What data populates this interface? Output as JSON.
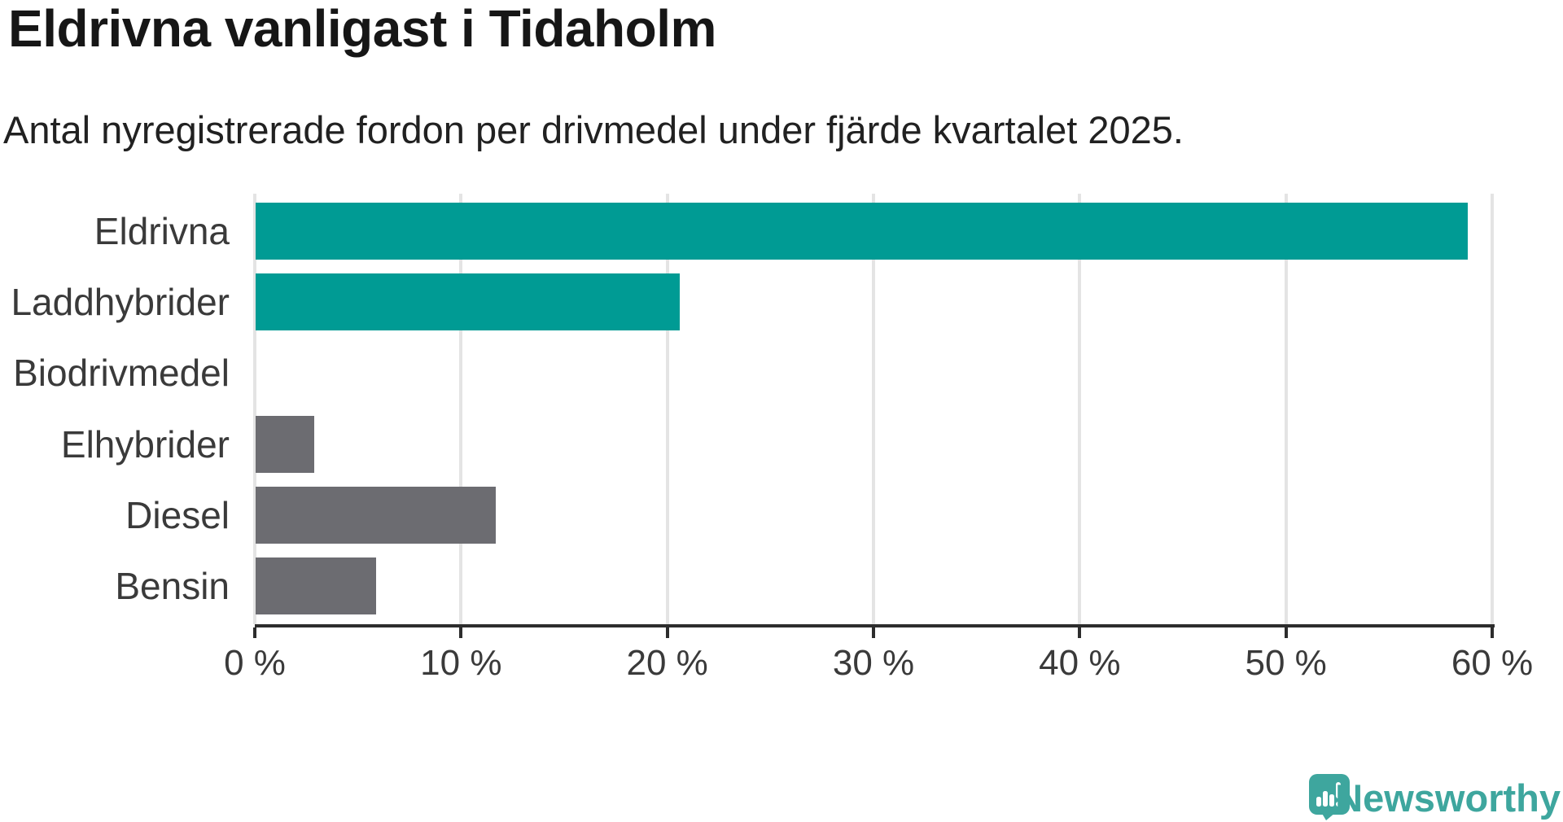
{
  "header": {
    "title": "Eldrivna vanligast i Tidaholm",
    "subtitle": "Antal nyregistrerade fordon per drivmedel under fjärde kvartalet 2025."
  },
  "chart_data": {
    "type": "bar",
    "orientation": "horizontal",
    "title": "Eldrivna vanligast i Tidaholm",
    "subtitle": "Antal nyregistrerade fordon per drivmedel under fjärde kvartalet 2025.",
    "categories": [
      "Eldrivna",
      "Laddhybrider",
      "Biodrivmedel",
      "Elhybrider",
      "Diesel",
      "Bensin"
    ],
    "values": [
      58.8,
      20.6,
      0,
      2.9,
      11.7,
      5.9
    ],
    "unit": "%",
    "bar_colors": [
      "#009b94",
      "#009b94",
      "#6c6c71",
      "#6c6c71",
      "#6c6c71",
      "#6c6c71"
    ],
    "highlight_color": "#009b94",
    "default_color": "#6c6c71",
    "xlim": [
      0,
      60
    ],
    "x_ticks": [
      0,
      10,
      20,
      30,
      40,
      50,
      60
    ],
    "x_tick_labels": [
      "0 %",
      "10 %",
      "20 %",
      "30 %",
      "40 %",
      "50 %",
      "60 %"
    ],
    "grid": "vertical",
    "gridline_color": "#e4e4e4",
    "axis_color": "#2d2d2d",
    "label_color": "#3a3a3a"
  },
  "footer": {
    "brand": "Newsworthy",
    "brand_color": "#3ea69e",
    "logo_icon": "bar-chart-speech-bubble-icon"
  }
}
